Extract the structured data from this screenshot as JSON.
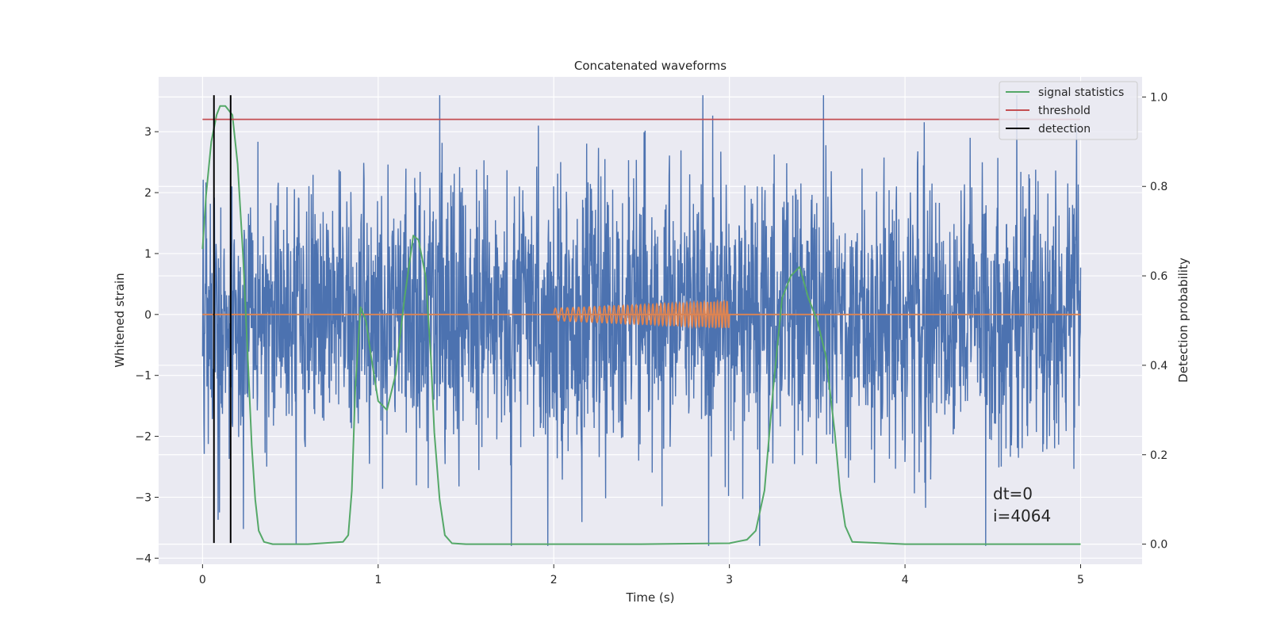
{
  "chart_data": {
    "type": "line",
    "title": "Concatenated waveforms",
    "xlabel": "Time (s)",
    "ylabel_left": "Whitened strain",
    "ylabel_right": "Detection probability",
    "xlim": [
      -0.25,
      5.35
    ],
    "ylim_left": [
      -4.1,
      3.9
    ],
    "ylim_right": [
      -0.045,
      1.045
    ],
    "xticks": [
      0,
      1,
      2,
      3,
      4,
      5
    ],
    "yticks_left": [
      -4,
      -3,
      -2,
      -1,
      0,
      1,
      2,
      3
    ],
    "yticks_right": [
      0.0,
      0.2,
      0.4,
      0.6,
      0.8,
      1.0
    ],
    "grid": true,
    "legend_position": "top-right",
    "colors": {
      "background": "#eaeaf2",
      "grid": "#ffffff",
      "strain": "#4c72b0",
      "injected_signal": "#dd8452",
      "signal_statistics": "#55a868",
      "threshold": "#c44e52",
      "detection": "#000000"
    },
    "series": [
      {
        "name": "signal statistics",
        "axis": "right",
        "x": [
          0,
          0.02,
          0.05,
          0.08,
          0.1,
          0.13,
          0.17,
          0.2,
          0.23,
          0.26,
          0.28,
          0.3,
          0.32,
          0.35,
          0.4,
          0.6,
          0.8,
          0.83,
          0.85,
          0.87,
          0.9,
          0.93,
          0.96,
          1.0,
          1.05,
          1.1,
          1.15,
          1.2,
          1.23,
          1.27,
          1.3,
          1.32,
          1.35,
          1.38,
          1.42,
          1.5,
          2.0,
          2.5,
          3.0,
          3.05,
          3.1,
          3.15,
          3.2,
          3.25,
          3.3,
          3.35,
          3.4,
          3.45,
          3.5,
          3.55,
          3.6,
          3.63,
          3.66,
          3.7,
          4.0,
          4.5,
          5.0
        ],
        "y": [
          0.66,
          0.78,
          0.9,
          0.96,
          0.98,
          0.98,
          0.96,
          0.85,
          0.65,
          0.4,
          0.22,
          0.1,
          0.03,
          0.005,
          0.0,
          0.0,
          0.005,
          0.02,
          0.12,
          0.35,
          0.53,
          0.5,
          0.42,
          0.32,
          0.3,
          0.38,
          0.55,
          0.69,
          0.68,
          0.6,
          0.42,
          0.25,
          0.1,
          0.02,
          0.002,
          0.0,
          0.0,
          0.0,
          0.002,
          0.006,
          0.01,
          0.03,
          0.12,
          0.35,
          0.55,
          0.6,
          0.62,
          0.55,
          0.5,
          0.42,
          0.25,
          0.12,
          0.04,
          0.005,
          0.0,
          0.0,
          0.0
        ]
      },
      {
        "name": "threshold",
        "axis": "right",
        "x": [
          0,
          5
        ],
        "y": [
          0.95,
          0.95
        ]
      },
      {
        "name": "detection",
        "axis": "left",
        "x_positions": [
          0.065,
          0.16
        ],
        "y_range": [
          -3.75,
          3.6
        ]
      }
    ],
    "strain_noise": {
      "axis": "left",
      "x_range": [
        0,
        5
      ],
      "typical_range": [
        -1.5,
        1.5
      ],
      "max": 3.6,
      "min": -3.8,
      "samples": 4096
    },
    "injected_signal": {
      "axis": "left",
      "x_range": [
        2.0,
        3.0
      ],
      "amplitude_start": 0.1,
      "amplitude_end": 0.22,
      "baseline": 0
    },
    "annotations": [
      "dt=0",
      "i=4064"
    ]
  }
}
